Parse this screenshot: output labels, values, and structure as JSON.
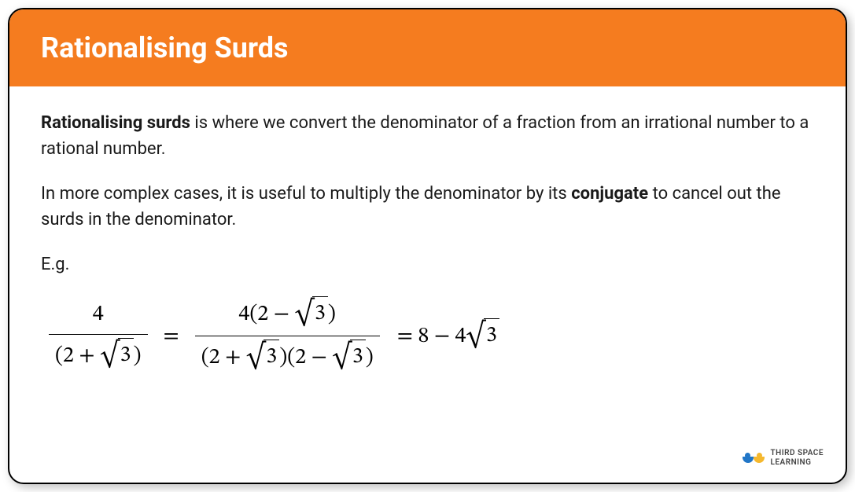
{
  "header": {
    "title": "Rationalising Surds",
    "background_color": "#f57c1f",
    "text_color": "#ffffff",
    "fontsize": 36
  },
  "body": {
    "para1_bold": "Rationalising surds",
    "para1_rest": " is where we convert the denominator of a fraction from an irrational number to a rational number.",
    "para2_start": "In more complex cases, it is useful to multiply the denominator by its ",
    "para2_bold": "conjugate",
    "para2_end": " to cancel out the surds in the denominator.",
    "eg_label": "E.g.",
    "text_color": "#1a1a1a",
    "fontsize": 22
  },
  "formula": {
    "frac1_num": "4",
    "frac1_den_open": "(2 + ",
    "frac1_den_surd": "3",
    "frac1_den_close": ")",
    "equals": "=",
    "frac2_num_open": "4(2 − ",
    "frac2_num_surd": "3",
    "frac2_num_close": ")",
    "frac2_den_open": "(2 + ",
    "frac2_den_surd1": "3",
    "frac2_den_mid": ")(2 − ",
    "frac2_den_surd2": "3",
    "frac2_den_close": ")",
    "result_open": "= 8 − 4",
    "result_surd": "3",
    "fontsize": 28,
    "color": "#000000"
  },
  "logo": {
    "line1": "THIRD SPACE",
    "line2": "LEARNING",
    "dot_blue": "#2176c7",
    "dot_yellow": "#f5b82e",
    "arc_blue": "#2176c7",
    "arc_yellow": "#f5b82e"
  },
  "card": {
    "border_color": "#000000",
    "border_radius": 20,
    "background": "#ffffff"
  }
}
